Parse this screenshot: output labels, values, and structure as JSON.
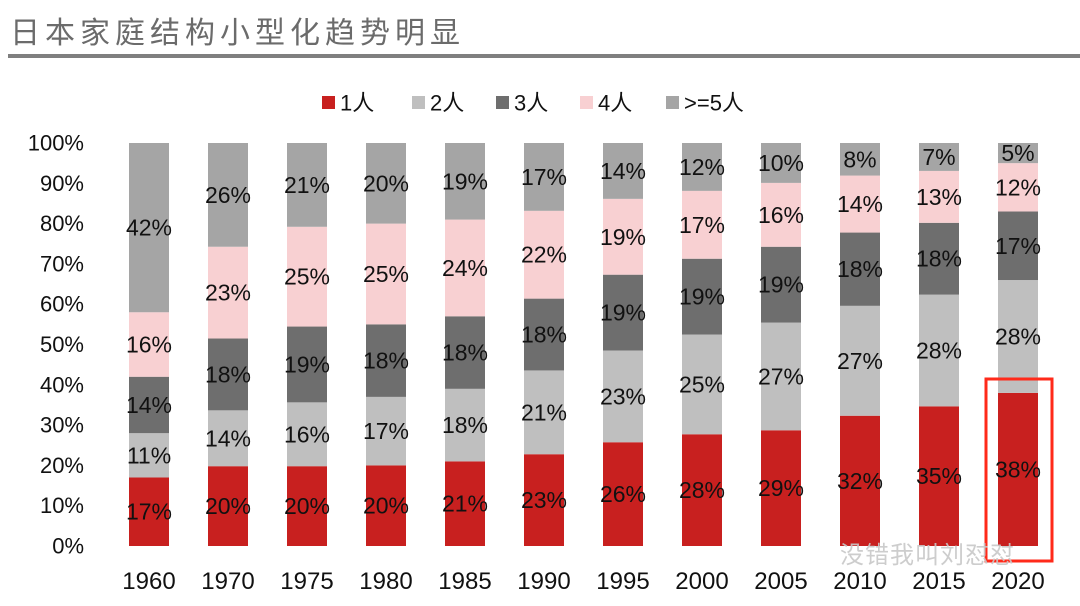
{
  "title": "日本家庭结构小型化趋势明显",
  "watermark": "没错我叫刘怼怼",
  "chart_data": {
    "type": "bar",
    "stacked": true,
    "categories": [
      "1960",
      "1970",
      "1975",
      "1980",
      "1985",
      "1990",
      "1995",
      "2000",
      "2005",
      "2010",
      "2015",
      "2020"
    ],
    "series": [
      {
        "name": "1人",
        "color": "#C8201F",
        "values": [
          17,
          20,
          20,
          20,
          21,
          23,
          26,
          28,
          29,
          32,
          35,
          38
        ]
      },
      {
        "name": "2人",
        "color": "#BFBFBF",
        "values": [
          11,
          14,
          16,
          17,
          18,
          21,
          23,
          25,
          27,
          27,
          28,
          28
        ]
      },
      {
        "name": "3人",
        "color": "#6E6E6E",
        "values": [
          14,
          18,
          19,
          18,
          18,
          18,
          19,
          19,
          19,
          18,
          18,
          17
        ]
      },
      {
        "name": "4人",
        "color": "#F8D0D2",
        "values": [
          16,
          23,
          25,
          25,
          24,
          22,
          19,
          17,
          16,
          14,
          13,
          12
        ]
      },
      {
        "name": ">=5人",
        "color": "#A5A5A5",
        "values": [
          42,
          26,
          21,
          20,
          19,
          17,
          14,
          12,
          10,
          8,
          7,
          5
        ]
      }
    ],
    "yticks": [
      "0%",
      "10%",
      "20%",
      "30%",
      "40%",
      "50%",
      "60%",
      "70%",
      "80%",
      "90%",
      "100%"
    ],
    "ylim": [
      0,
      100
    ],
    "legend": "top",
    "grid": false,
    "highlight": {
      "category": "2020",
      "color": "#FF2A1A"
    }
  }
}
